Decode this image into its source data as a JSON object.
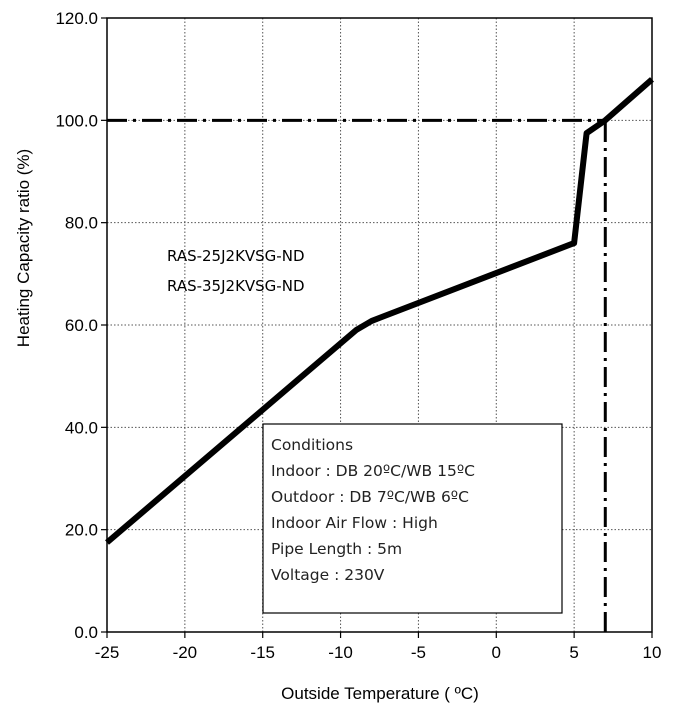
{
  "chart_data": {
    "type": "line",
    "title": "",
    "xlabel": "Outside Temperature ( ºC)",
    "ylabel": "Heating Capacity ratio (%)",
    "xlim": [
      -25,
      10
    ],
    "ylim": [
      0,
      120
    ],
    "x_ticks": [
      -25,
      -20,
      -15,
      -10,
      -5,
      0,
      5,
      10
    ],
    "x_tick_labels": [
      "-25",
      "-20",
      "-15",
      "-10",
      "-5",
      "0",
      "5",
      "10"
    ],
    "y_ticks": [
      0,
      20,
      40,
      60,
      80,
      100,
      120
    ],
    "y_tick_labels": [
      "0.0",
      "20.0",
      "40.0",
      "60.0",
      "80.0",
      "100.0",
      "120.0"
    ],
    "grid": true,
    "series": [
      {
        "color": "#000000",
        "x": [
          -25,
          -9,
          -8,
          5,
          5.8,
          7,
          10
        ],
        "y": [
          17.5,
          59,
          60.8,
          76,
          97.5,
          100,
          108
        ]
      }
    ],
    "reference_lines": [
      {
        "style": "dash-dot",
        "orientation": "horizontal",
        "y": 100,
        "x_from": -25,
        "x_to": 7
      },
      {
        "style": "dash-dot",
        "orientation": "vertical",
        "x": 7,
        "y_from": 0,
        "y_to": 100
      }
    ],
    "annotations": {
      "models": [
        "RAS-25J2KVSG-ND",
        "RAS-35J2KVSG-ND"
      ],
      "conditions": [
        "Conditions",
        "Indoor : DB 20ºC/WB 15ºC",
        "Outdoor : DB 7ºC/WB 6ºC",
        "Indoor Air Flow : High",
        "Pipe Length : 5m",
        "Voltage : 230V"
      ]
    }
  }
}
